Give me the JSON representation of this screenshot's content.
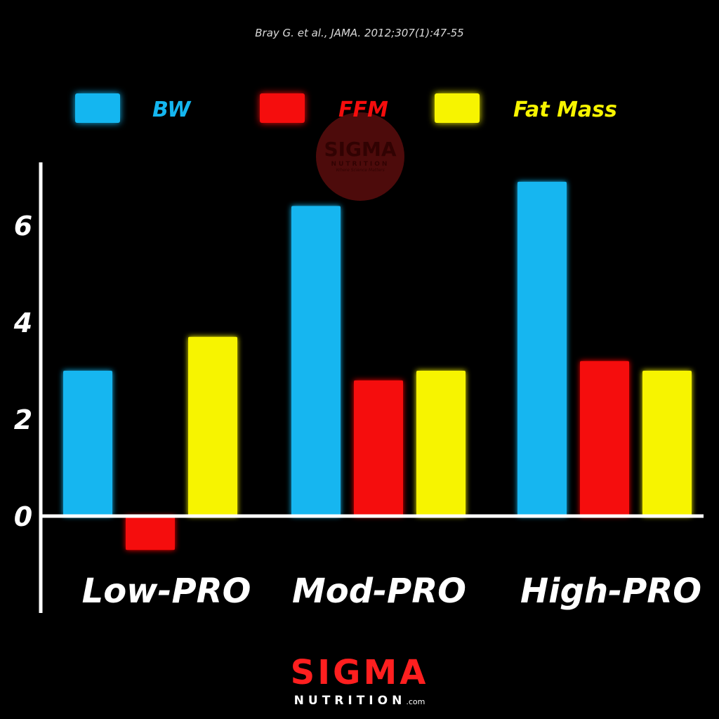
{
  "citation": "Bray G. et al., JAMA. 2012;307(1):47-55",
  "watermark": {
    "sigma": "SIGMA",
    "nutrition": "NUTRITION",
    "tagline": "Where Science Matters"
  },
  "brand": {
    "sigma": "SIGMA",
    "nutrition": "NUTRITION",
    "com": ".com"
  },
  "colors": {
    "BW": "#14b6f0",
    "FFM": "#f50d0d",
    "Fat Mass": "#f7f400",
    "background": "#000000",
    "axis": "#ffffff"
  },
  "chart_data": {
    "type": "bar",
    "categories": [
      "Low-PRO",
      "Mod-PRO",
      "High-PRO"
    ],
    "series": [
      {
        "name": "BW",
        "values": [
          3.0,
          6.4,
          6.9
        ]
      },
      {
        "name": "FFM",
        "values": [
          -0.7,
          2.8,
          3.2
        ]
      },
      {
        "name": "Fat Mass",
        "values": [
          3.7,
          3.0,
          3.0
        ]
      }
    ],
    "title": "",
    "xlabel": "",
    "ylabel": "",
    "ylim": [
      -2,
      7.3
    ],
    "yticks": [
      "0",
      "2",
      "4",
      "6"
    ],
    "legend": "top",
    "grid": false
  }
}
